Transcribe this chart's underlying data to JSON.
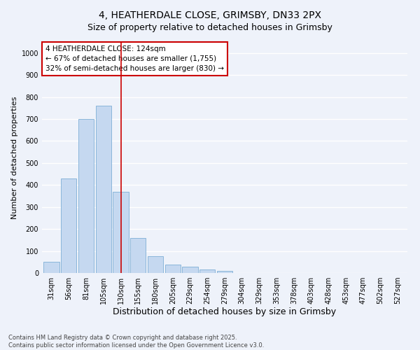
{
  "title": "4, HEATHERDALE CLOSE, GRIMSBY, DN33 2PX",
  "subtitle": "Size of property relative to detached houses in Grimsby",
  "xlabel": "Distribution of detached houses by size in Grimsby",
  "ylabel": "Number of detached properties",
  "categories": [
    "31sqm",
    "56sqm",
    "81sqm",
    "105sqm",
    "130sqm",
    "155sqm",
    "180sqm",
    "205sqm",
    "229sqm",
    "254sqm",
    "279sqm",
    "304sqm",
    "329sqm",
    "353sqm",
    "378sqm",
    "403sqm",
    "428sqm",
    "453sqm",
    "477sqm",
    "502sqm",
    "527sqm"
  ],
  "values": [
    50,
    430,
    700,
    760,
    370,
    160,
    75,
    38,
    30,
    15,
    10,
    0,
    0,
    0,
    0,
    0,
    0,
    0,
    0,
    0,
    0
  ],
  "bar_color": "#c5d8f0",
  "bar_edge_color": "#7eafd6",
  "vline_x": 4.0,
  "vline_color": "#cc0000",
  "annotation_text": "4 HEATHERDALE CLOSE: 124sqm\n← 67% of detached houses are smaller (1,755)\n32% of semi-detached houses are larger (830) →",
  "annotation_box_color": "#ffffff",
  "annotation_box_edge": "#cc0000",
  "ylim": [
    0,
    1050
  ],
  "yticks": [
    0,
    100,
    200,
    300,
    400,
    500,
    600,
    700,
    800,
    900,
    1000
  ],
  "bg_color": "#eef2fa",
  "grid_color": "#ffffff",
  "footer": "Contains HM Land Registry data © Crown copyright and database right 2025.\nContains public sector information licensed under the Open Government Licence v3.0.",
  "title_fontsize": 10,
  "subtitle_fontsize": 9,
  "xlabel_fontsize": 9,
  "ylabel_fontsize": 8,
  "tick_fontsize": 7,
  "annotation_fontsize": 7.5,
  "footer_fontsize": 6
}
